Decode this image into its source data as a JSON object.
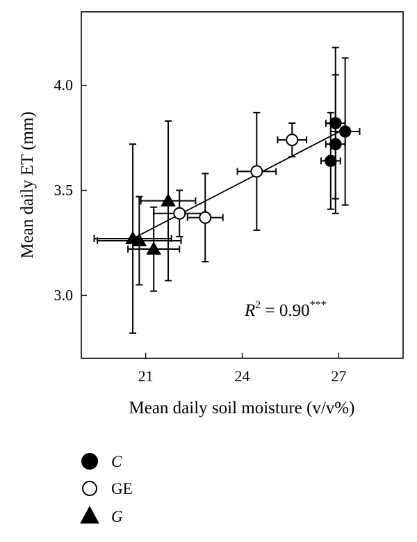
{
  "chart_data": {
    "type": "scatter",
    "xlabel": "Mean daily soil moisture (v/v%)",
    "ylabel": "Mean daily ET (mm)",
    "xlim": [
      19.0,
      29.0
    ],
    "ylim": [
      2.7,
      4.35
    ],
    "xticks": [
      21,
      24,
      27
    ],
    "yticks": [
      3.0,
      3.5,
      4.0
    ],
    "xtick_labels": [
      "21",
      "24",
      "27"
    ],
    "ytick_labels": [
      "3.0",
      "3.5",
      "4.0"
    ],
    "grid": false,
    "legend_position": "below",
    "annotation": {
      "prefix": "R",
      "sup1": "2",
      "mid": " = 0.90",
      "sup2": "***"
    },
    "trendline": {
      "x": [
        20.6,
        27.15
      ],
      "y": [
        3.27,
        3.79
      ]
    },
    "series": [
      {
        "name": "C",
        "marker": "circle-filled",
        "points": [
          {
            "x": 26.9,
            "y": 3.82,
            "xerr": 0.3,
            "yerr": 0.36
          },
          {
            "x": 27.2,
            "y": 3.78,
            "xerr": 0.45,
            "yerr": 0.35
          },
          {
            "x": 26.9,
            "y": 3.72,
            "xerr": 0.3,
            "yerr": 0.33
          },
          {
            "x": 26.75,
            "y": 3.64,
            "xerr": 0.3,
            "yerr": 0.23
          }
        ]
      },
      {
        "name": "GE",
        "marker": "circle-open",
        "points": [
          {
            "x": 25.55,
            "y": 3.74,
            "xerr": 0.45,
            "yerr": 0.08
          },
          {
            "x": 24.45,
            "y": 3.59,
            "xerr": 0.6,
            "yerr": 0.28
          },
          {
            "x": 22.05,
            "y": 3.39,
            "xerr": 0.8,
            "yerr": 0.11
          },
          {
            "x": 22.85,
            "y": 3.37,
            "xerr": 0.55,
            "yerr": 0.21
          }
        ]
      },
      {
        "name": "G",
        "marker": "triangle-filled",
        "points": [
          {
            "x": 21.7,
            "y": 3.45,
            "xerr": 0.85,
            "yerr": 0.38
          },
          {
            "x": 20.6,
            "y": 3.27,
            "xerr": 1.2,
            "yerr": 0.45
          },
          {
            "x": 20.8,
            "y": 3.26,
            "xerr": 1.3,
            "yerr": 0.21
          },
          {
            "x": 21.25,
            "y": 3.22,
            "xerr": 0.8,
            "yerr": 0.2
          }
        ]
      }
    ]
  },
  "legend": [
    {
      "label": "C",
      "marker": "circle-filled",
      "italic": true
    },
    {
      "label": "GE",
      "marker": "circle-open",
      "italic": false
    },
    {
      "label": "G",
      "marker": "triangle-filled",
      "italic": true
    }
  ]
}
